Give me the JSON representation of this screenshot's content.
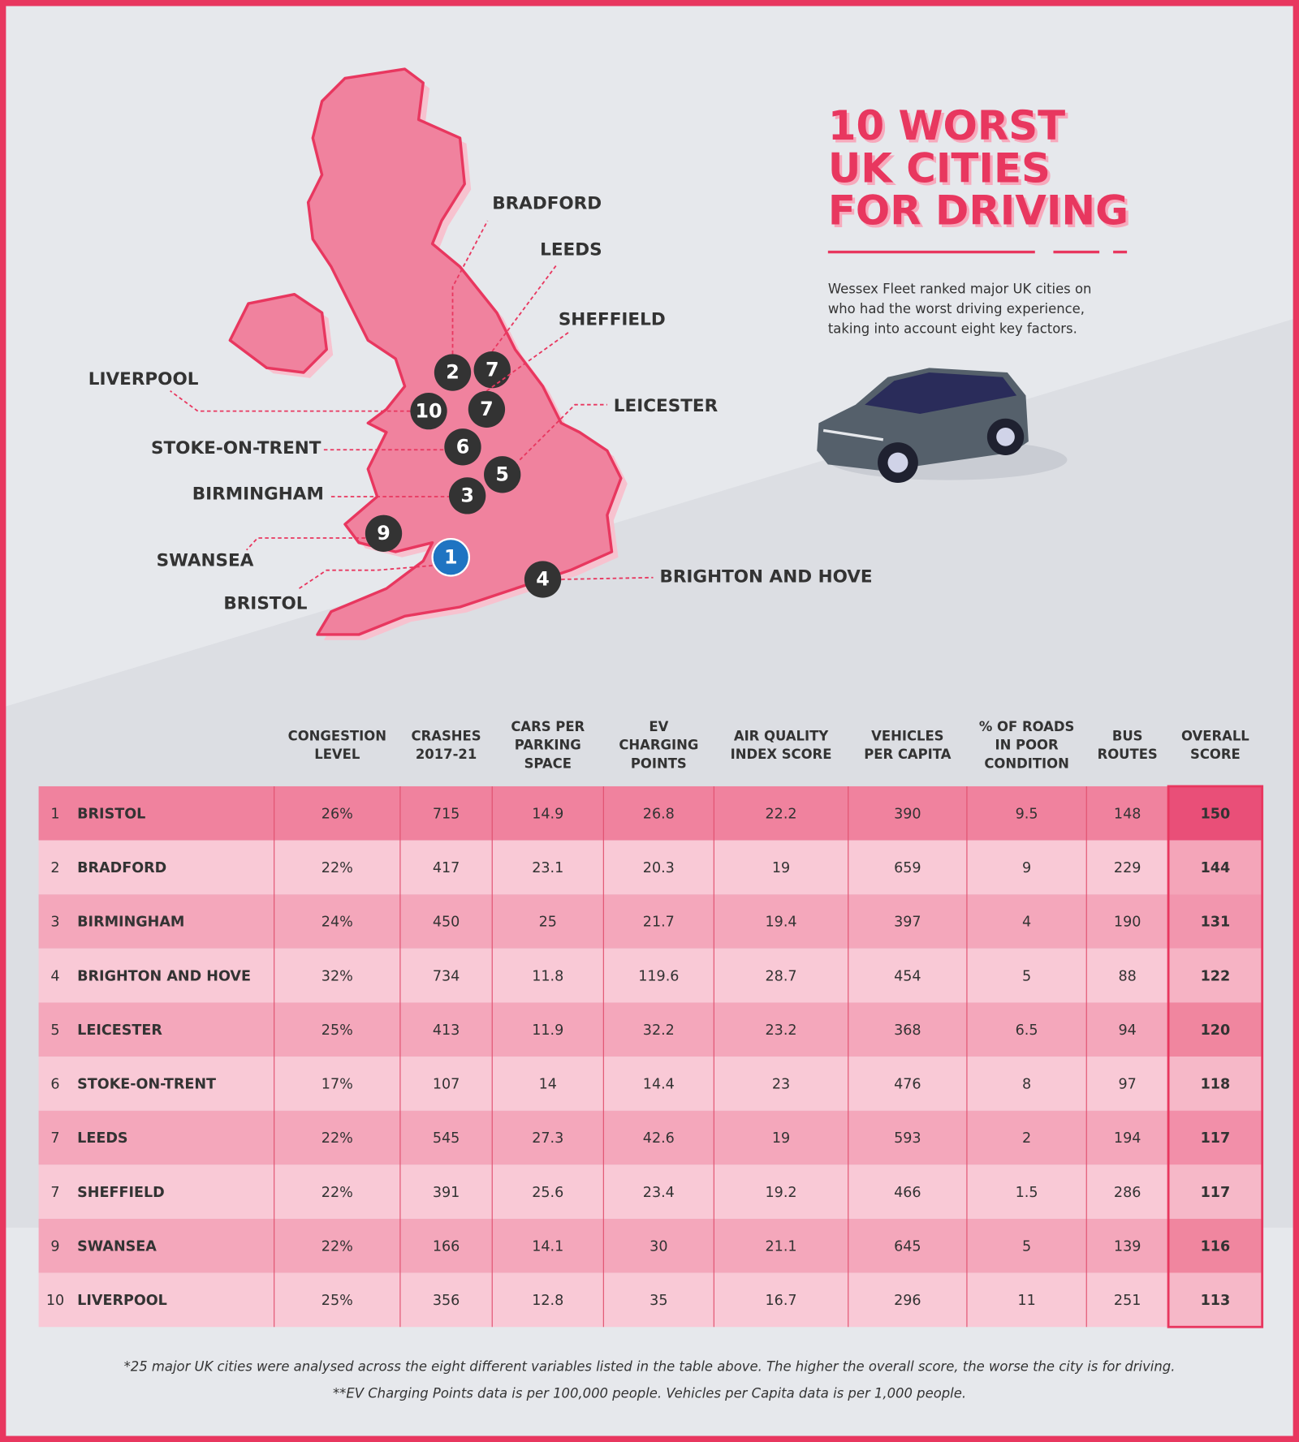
{
  "title": [
    "10 WORST",
    "UK CITIES",
    "FOR DRIVING"
  ],
  "description": [
    "Wessex Fleet ranked major UK cities on",
    "who had the worst driving experience,",
    "taking into account eight key factors."
  ],
  "map": {
    "markers": [
      {
        "rank": 1,
        "label": "BRISTOL"
      },
      {
        "rank": 2,
        "label": "BRADFORD"
      },
      {
        "rank": 3,
        "label": "BIRMINGHAM"
      },
      {
        "rank": 4,
        "label": "BRIGHTON AND HOVE"
      },
      {
        "rank": 5,
        "label": "LEICESTER"
      },
      {
        "rank": 6,
        "label": "STOKE-ON-TRENT"
      },
      {
        "rank": 7,
        "label": "LEEDS"
      },
      {
        "rank": 7,
        "label": "SHEFFIELD"
      },
      {
        "rank": 9,
        "label": "SWANSEA"
      },
      {
        "rank": 10,
        "label": "LIVERPOOL"
      }
    ]
  },
  "table": {
    "columns": [
      [
        "CONGESTION",
        "LEVEL"
      ],
      [
        "CRASHES",
        "2017-21"
      ],
      [
        "CARS PER",
        "PARKING",
        "SPACE"
      ],
      [
        "EV",
        "CHARGING",
        "POINTS"
      ],
      [
        "AIR QUALITY",
        "INDEX SCORE"
      ],
      [
        "VEHICLES",
        "PER CAPITA"
      ],
      [
        "% OF ROADS",
        "IN POOR",
        "CONDITION"
      ],
      [
        "BUS",
        "ROUTES"
      ],
      [
        "OVERALL",
        "SCORE"
      ]
    ],
    "rows": [
      [
        1,
        "BRISTOL",
        "26%",
        715,
        14.9,
        26.8,
        22.2,
        390,
        9.5,
        148,
        150
      ],
      [
        2,
        "BRADFORD",
        "22%",
        417,
        23.1,
        20.3,
        19,
        659,
        9,
        229,
        144
      ],
      [
        3,
        "BIRMINGHAM",
        "24%",
        450,
        25,
        21.7,
        19.4,
        397,
        4,
        190,
        131
      ],
      [
        4,
        "BRIGHTON AND HOVE",
        "32%",
        734,
        11.8,
        119.6,
        28.7,
        454,
        5,
        88,
        122
      ],
      [
        5,
        "LEICESTER",
        "25%",
        413,
        11.9,
        32.2,
        23.2,
        368,
        6.5,
        94,
        120
      ],
      [
        6,
        "STOKE-ON-TRENT",
        "17%",
        107,
        14,
        14.4,
        23,
        476,
        8,
        97,
        118
      ],
      [
        7,
        "LEEDS",
        "22%",
        545,
        27.3,
        42.6,
        19,
        593,
        2,
        194,
        117
      ],
      [
        7,
        "SHEFFIELD",
        "22%",
        391,
        25.6,
        23.4,
        19.2,
        466,
        1.5,
        286,
        117
      ],
      [
        9,
        "SWANSEA",
        "22%",
        166,
        14.1,
        30,
        21.1,
        645,
        5,
        139,
        116
      ],
      [
        10,
        "LIVERPOOL",
        "25%",
        356,
        12.8,
        35,
        16.7,
        296,
        11,
        251,
        113
      ]
    ]
  },
  "footnotes": [
    "*25 major UK cities were analysed across the eight different variables listed in the table above. The higher the overall score, the worse the city is for driving.",
    "**EV Charging Points data is per 100,000 people. Vehicles per Capita data is per 1,000 people."
  ]
}
